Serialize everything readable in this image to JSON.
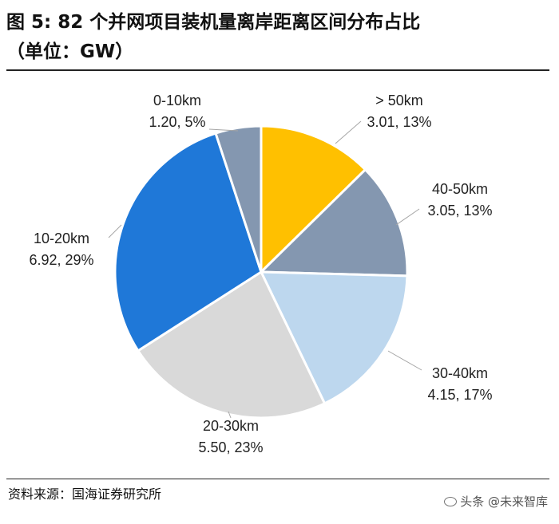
{
  "figure": {
    "title_line1": "图 5: 82 个并网项目装机量离岸距离区间分布占比",
    "title_line2": "（单位：GW）",
    "source": "资料来源：国海证券研究所",
    "watermark": "头条 @未来智库",
    "watermark_icon": "wechat-icon"
  },
  "chart_data": {
    "type": "pie",
    "title": "82 个并网项目装机量离岸距离区间分布占比",
    "unit": "GW",
    "slices": [
      {
        "label": "> 50km",
        "value": 3.01,
        "percent": 13,
        "text_line1": "> 50km",
        "text_line2": "3.01, 13%",
        "color": "#FFC000"
      },
      {
        "label": "40-50km",
        "value": 3.05,
        "percent": 13,
        "text_line1": "40-50km",
        "text_line2": "3.05, 13%",
        "color": "#8497B0"
      },
      {
        "label": "30-40km",
        "value": 4.15,
        "percent": 17,
        "text_line1": "30-40km",
        "text_line2": "4.15, 17%",
        "color": "#BDD7EE"
      },
      {
        "label": "20-30km",
        "value": 5.5,
        "percent": 23,
        "text_line1": "20-30km",
        "text_line2": "5.50, 23%",
        "color": "#D9D9D9"
      },
      {
        "label": "10-20km",
        "value": 6.92,
        "percent": 29,
        "text_line1": "10-20km",
        "text_line2": "6.92, 29%",
        "color": "#1F78D8"
      },
      {
        "label": "0-10km",
        "value": 1.2,
        "percent": 5,
        "text_line1": "0-10km",
        "text_line2": "1.20, 5%",
        "color": "#8497B0"
      }
    ],
    "start": "12 o'clock",
    "direction": "clockwise",
    "legend": "none",
    "label_color": "#222222",
    "leader_color": "#A6A6A6"
  }
}
